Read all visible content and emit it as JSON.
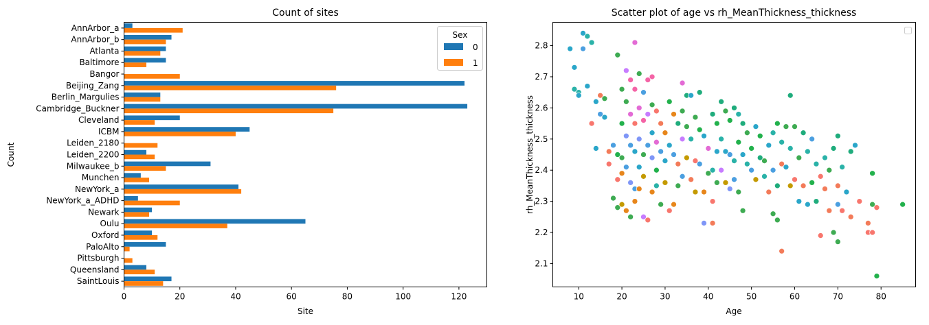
{
  "chart_data": [
    {
      "type": "bar",
      "orientation": "horizontal",
      "title": "Count of sites",
      "xlabel": "Site",
      "ylabel": "Count",
      "xlim": [
        0,
        130
      ],
      "xticks": [
        0,
        20,
        40,
        60,
        80,
        100,
        120
      ],
      "grid": false,
      "legend": {
        "title": "Sex",
        "placement": "top-right",
        "entries": [
          "0",
          "1"
        ]
      },
      "categories": [
        "AnnArbor_a",
        "AnnArbor_b",
        "Atlanta",
        "Baltimore",
        "Bangor",
        "Beijing_Zang",
        "Berlin_Margulies",
        "Cambridge_Buckner",
        "Cleveland",
        "ICBM",
        "Leiden_2180",
        "Leiden_2200",
        "Milwaukee_b",
        "Munchen",
        "NewYork_a",
        "NewYork_a_ADHD",
        "Newark",
        "Oulu",
        "Oxford",
        "PaloAlto",
        "Pittsburgh",
        "Queensland",
        "SaintLouis"
      ],
      "series": [
        {
          "name": "0",
          "color": "#1f77b4",
          "values": [
            3,
            17,
            15,
            15,
            0,
            122,
            13,
            123,
            20,
            45,
            0,
            8,
            31,
            6,
            41,
            5,
            10,
            65,
            10,
            15,
            0,
            8,
            17
          ]
        },
        {
          "name": "1",
          "color": "#ff7f0e",
          "values": [
            21,
            15,
            13,
            8,
            20,
            76,
            13,
            75,
            11,
            40,
            12,
            11,
            15,
            9,
            42,
            20,
            9,
            37,
            12,
            2,
            3,
            11,
            14
          ]
        }
      ]
    },
    {
      "type": "scatter",
      "title": "Scatter plot of age vs rh_MeanThickness_thickness",
      "xlabel": "Age",
      "ylabel": "rh_MeanThickness_thickness",
      "xlim": [
        4,
        88
      ],
      "ylim": [
        2.025,
        2.875
      ],
      "xticks": [
        10,
        20,
        30,
        40,
        50,
        60,
        70,
        80
      ],
      "yticks": [
        2.1,
        2.2,
        2.3,
        2.4,
        2.5,
        2.6,
        2.7,
        2.8
      ],
      "grid": false,
      "legend": {
        "placement": "top-right",
        "entries": []
      },
      "hue_colors": [
        "#f8766d",
        "#f37b59",
        "#e7861b",
        "#c49a00",
        "#3eab52",
        "#22b14c",
        "#1fac7c",
        "#2ab2a8",
        "#2aa6c9",
        "#4b9fe0",
        "#7f96f7",
        "#c77cff",
        "#e36bd5",
        "#f464a6"
      ],
      "points": [
        [
          8,
          2.79,
          8
        ],
        [
          9,
          2.66,
          7
        ],
        [
          9,
          2.73,
          8
        ],
        [
          10,
          2.65,
          7
        ],
        [
          10,
          2.64,
          8
        ],
        [
          11,
          2.79,
          9
        ],
        [
          11,
          2.84,
          8
        ],
        [
          12,
          2.83,
          7
        ],
        [
          12,
          2.67,
          8
        ],
        [
          13,
          2.81,
          7
        ],
        [
          13,
          2.55,
          0
        ],
        [
          14,
          2.62,
          8
        ],
        [
          14,
          2.47,
          8
        ],
        [
          15,
          2.64,
          1
        ],
        [
          15,
          2.58,
          9
        ],
        [
          16,
          2.57,
          8
        ],
        [
          16,
          2.63,
          4
        ],
        [
          17,
          2.46,
          1
        ],
        [
          17,
          2.42,
          0
        ],
        [
          18,
          2.48,
          9
        ],
        [
          18,
          2.31,
          4
        ],
        [
          19,
          2.77,
          4
        ],
        [
          19,
          2.45,
          5
        ],
        [
          19,
          2.37,
          0
        ],
        [
          19,
          2.28,
          4
        ],
        [
          20,
          2.66,
          4
        ],
        [
          20,
          2.55,
          5
        ],
        [
          20,
          2.44,
          4
        ],
        [
          20,
          2.39,
          2
        ],
        [
          20,
          2.29,
          3
        ],
        [
          21,
          2.72,
          11
        ],
        [
          21,
          2.62,
          4
        ],
        [
          21,
          2.51,
          10
        ],
        [
          21,
          2.41,
          9
        ],
        [
          21,
          2.27,
          2
        ],
        [
          22,
          2.69,
          13
        ],
        [
          22,
          2.58,
          12
        ],
        [
          22,
          2.48,
          9
        ],
        [
          22,
          2.36,
          10
        ],
        [
          22,
          2.25,
          4
        ],
        [
          23,
          2.81,
          12
        ],
        [
          23,
          2.66,
          13
        ],
        [
          23,
          2.55,
          0
        ],
        [
          23,
          2.46,
          8
        ],
        [
          23,
          2.34,
          9
        ],
        [
          23,
          2.3,
          2
        ],
        [
          24,
          2.71,
          4
        ],
        [
          24,
          2.6,
          12
        ],
        [
          24,
          2.5,
          10
        ],
        [
          24,
          2.41,
          8
        ],
        [
          24,
          2.34,
          2
        ],
        [
          25,
          2.65,
          9
        ],
        [
          25,
          2.56,
          13
        ],
        [
          25,
          2.45,
          4
        ],
        [
          25,
          2.38,
          3
        ],
        [
          25,
          2.25,
          11
        ],
        [
          26,
          2.69,
          13
        ],
        [
          26,
          2.58,
          11
        ],
        [
          26,
          2.48,
          9
        ],
        [
          26,
          2.24,
          0
        ],
        [
          27,
          2.7,
          13
        ],
        [
          27,
          2.61,
          4
        ],
        [
          27,
          2.52,
          8
        ],
        [
          27,
          2.44,
          10
        ],
        [
          27,
          2.33,
          2
        ],
        [
          28,
          2.59,
          0
        ],
        [
          28,
          2.49,
          12
        ],
        [
          28,
          2.4,
          5
        ],
        [
          28,
          2.35,
          7
        ],
        [
          29,
          2.55,
          1
        ],
        [
          29,
          2.46,
          9
        ],
        [
          29,
          2.29,
          4
        ],
        [
          30,
          2.52,
          2
        ],
        [
          30,
          2.43,
          8
        ],
        [
          30,
          2.36,
          3
        ],
        [
          31,
          2.62,
          5
        ],
        [
          31,
          2.48,
          8
        ],
        [
          31,
          2.27,
          0
        ],
        [
          32,
          2.58,
          2
        ],
        [
          32,
          2.45,
          9
        ],
        [
          32,
          2.29,
          2
        ],
        [
          33,
          2.55,
          6
        ],
        [
          33,
          2.42,
          1
        ],
        [
          33,
          2.35,
          4
        ],
        [
          34,
          2.68,
          12
        ],
        [
          34,
          2.59,
          4
        ],
        [
          34,
          2.5,
          11
        ],
        [
          34,
          2.38,
          9
        ],
        [
          35,
          2.64,
          6
        ],
        [
          35,
          2.54,
          4
        ],
        [
          35,
          2.44,
          3
        ],
        [
          36,
          2.64,
          8
        ],
        [
          36,
          2.5,
          7
        ],
        [
          36,
          2.37,
          1
        ],
        [
          37,
          2.57,
          4
        ],
        [
          37,
          2.43,
          0
        ],
        [
          37,
          2.33,
          3
        ],
        [
          38,
          2.65,
          6
        ],
        [
          38,
          2.53,
          5
        ],
        [
          38,
          2.42,
          9
        ],
        [
          39,
          2.51,
          8
        ],
        [
          39,
          2.23,
          10
        ],
        [
          39,
          2.33,
          2
        ],
        [
          40,
          2.47,
          12
        ],
        [
          40,
          2.39,
          4
        ],
        [
          41,
          2.58,
          6
        ],
        [
          41,
          2.4,
          7
        ],
        [
          41,
          2.3,
          0
        ],
        [
          41,
          2.23,
          1
        ],
        [
          42,
          2.55,
          5
        ],
        [
          42,
          2.46,
          8
        ],
        [
          42,
          2.36,
          4
        ],
        [
          43,
          2.62,
          6
        ],
        [
          43,
          2.5,
          7
        ],
        [
          43,
          2.4,
          11
        ],
        [
          44,
          2.59,
          4
        ],
        [
          44,
          2.46,
          8
        ],
        [
          44,
          2.36,
          3
        ],
        [
          45,
          2.56,
          5
        ],
        [
          45,
          2.45,
          9
        ],
        [
          45,
          2.34,
          10
        ],
        [
          46,
          2.6,
          6
        ],
        [
          46,
          2.43,
          7
        ],
        [
          46,
          2.37,
          9
        ],
        [
          47,
          2.58,
          7
        ],
        [
          47,
          2.49,
          5
        ],
        [
          47,
          2.33,
          4
        ],
        [
          48,
          2.55,
          6
        ],
        [
          48,
          2.45,
          8
        ],
        [
          48,
          2.27,
          4
        ],
        [
          49,
          2.52,
          4
        ],
        [
          49,
          2.42,
          7
        ],
        [
          50,
          2.47,
          5
        ],
        [
          50,
          2.4,
          9
        ],
        [
          51,
          2.54,
          8
        ],
        [
          51,
          2.37,
          3
        ],
        [
          52,
          2.44,
          6
        ],
        [
          52,
          2.51,
          5
        ],
        [
          53,
          2.38,
          7
        ],
        [
          53,
          2.43,
          4
        ],
        [
          54,
          2.48,
          8
        ],
        [
          54,
          2.33,
          1
        ],
        [
          55,
          2.52,
          7
        ],
        [
          55,
          2.4,
          9
        ],
        [
          55,
          2.26,
          4
        ],
        [
          56,
          2.55,
          5
        ],
        [
          56,
          2.35,
          6
        ],
        [
          56,
          2.24,
          4
        ],
        [
          57,
          2.49,
          7
        ],
        [
          57,
          2.42,
          1
        ],
        [
          57,
          2.14,
          1
        ],
        [
          58,
          2.54,
          4
        ],
        [
          58,
          2.41,
          8
        ],
        [
          59,
          2.64,
          6
        ],
        [
          59,
          2.47,
          7
        ],
        [
          59,
          2.35,
          3
        ],
        [
          60,
          2.54,
          4
        ],
        [
          60,
          2.37,
          0
        ],
        [
          61,
          2.3,
          8
        ],
        [
          61,
          2.44,
          4
        ],
        [
          62,
          2.52,
          6
        ],
        [
          62,
          2.35,
          1
        ],
        [
          63,
          2.46,
          7
        ],
        [
          63,
          2.29,
          8
        ],
        [
          64,
          2.5,
          9
        ],
        [
          64,
          2.36,
          5
        ],
        [
          65,
          2.42,
          7
        ],
        [
          65,
          2.3,
          6
        ],
        [
          66,
          2.38,
          0
        ],
        [
          66,
          2.19,
          0
        ],
        [
          67,
          2.44,
          7
        ],
        [
          67,
          2.34,
          1
        ],
        [
          68,
          2.4,
          4
        ],
        [
          68,
          2.27,
          1
        ],
        [
          69,
          2.47,
          6
        ],
        [
          69,
          2.2,
          4
        ],
        [
          70,
          2.51,
          6
        ],
        [
          70,
          2.35,
          1
        ],
        [
          70,
          2.29,
          9
        ],
        [
          70,
          2.17,
          4
        ],
        [
          71,
          2.41,
          7
        ],
        [
          71,
          2.27,
          0
        ],
        [
          72,
          2.33,
          8
        ],
        [
          73,
          2.46,
          6
        ],
        [
          73,
          2.25,
          1
        ],
        [
          74,
          2.48,
          8
        ],
        [
          75,
          2.3,
          0
        ],
        [
          77,
          2.23,
          1
        ],
        [
          77,
          2.2,
          0
        ],
        [
          78,
          2.39,
          5
        ],
        [
          78,
          2.29,
          4
        ],
        [
          78,
          2.2,
          0
        ],
        [
          79,
          2.28,
          0
        ],
        [
          79,
          2.06,
          5
        ],
        [
          85,
          2.29,
          5
        ]
      ]
    }
  ]
}
